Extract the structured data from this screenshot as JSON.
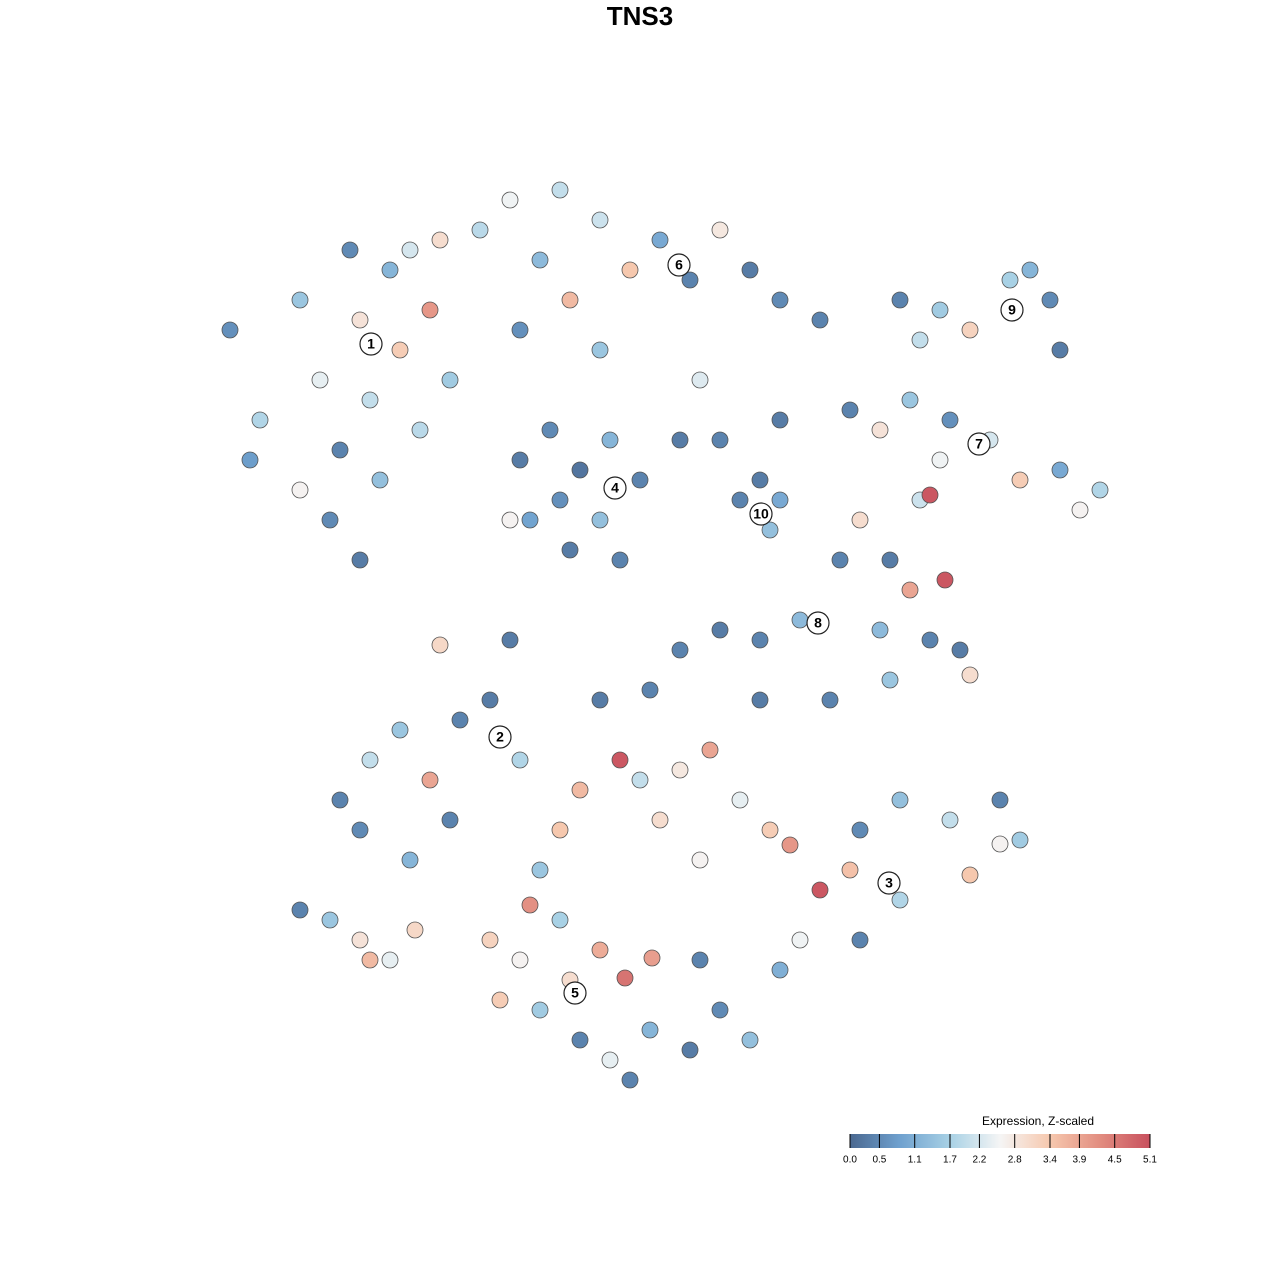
{
  "chart_data": {
    "type": "scatter",
    "title": "TNS3",
    "x": [
      23,
      26,
      30,
      32,
      34,
      36,
      37,
      39,
      40,
      42,
      43,
      45,
      33,
      36,
      30,
      25,
      41,
      35,
      44,
      38,
      48,
      51,
      54,
      57,
      60,
      63,
      66,
      69,
      72,
      75,
      78,
      82,
      56,
      52,
      60,
      70,
      90,
      94,
      97,
      101,
      105,
      106,
      92,
      103,
      85,
      88,
      91,
      95,
      99,
      102,
      106,
      110,
      94,
      108,
      52,
      55,
      58,
      61,
      64,
      53,
      57,
      60,
      62,
      56,
      51,
      68,
      72,
      78,
      74,
      77,
      76,
      78,
      84,
      86,
      89,
      92,
      93,
      94.5,
      91,
      88,
      93,
      96,
      89,
      97,
      80,
      76,
      72,
      68,
      44,
      51,
      34,
      37,
      40,
      43,
      46,
      49,
      36,
      41,
      45,
      52,
      30,
      33,
      36,
      39,
      41.5,
      37,
      60,
      65,
      62,
      58,
      64,
      68,
      71,
      74,
      77,
      79,
      82,
      85,
      86,
      90,
      95,
      100,
      102,
      100,
      97,
      90,
      86,
      80,
      78,
      70,
      66,
      56,
      54,
      76,
      83,
      49,
      53,
      52,
      56,
      60,
      62.5,
      65.2,
      50,
      54,
      58,
      61,
      65,
      69,
      72,
      75,
      57,
      63,
      70
    ],
    "y": [
      95,
      86,
      98,
      90,
      83,
      96,
      88,
      101,
      93,
      85,
      97,
      90,
      76,
      72,
      79,
      82,
      103,
      103,
      104,
      80,
      105,
      108,
      102,
      98,
      106,
      101,
      104,
      100,
      105,
      101,
      98,
      96,
      109,
      95,
      93,
      90,
      98,
      97,
      95,
      100,
      98,
      93,
      94,
      101,
      87,
      85,
      88,
      86,
      84,
      80,
      81,
      79,
      82,
      77,
      82,
      85,
      81,
      84,
      80,
      76,
      73,
      76,
      72,
      78,
      76,
      84,
      84,
      86,
      78,
      75,
      80,
      78,
      72,
      76,
      72,
      78,
      78.5,
      70,
      69,
      65,
      64,
      63,
      60,
      60.5,
      66,
      64,
      65,
      63,
      63.5,
      64,
      48,
      52,
      55,
      50,
      56,
      58,
      45,
      42,
      46,
      52,
      37,
      36,
      34,
      32,
      35,
      32,
      58,
      59,
      52,
      49,
      50,
      51,
      53,
      48,
      45,
      43.5,
      39,
      41,
      45,
      48,
      46,
      48,
      44,
      43.6,
      40.5,
      38,
      34,
      34,
      31,
      42,
      46,
      45,
      41,
      58,
      58,
      34,
      37.5,
      32,
      36,
      33,
      30.2,
      32.2,
      28,
      27,
      24,
      22,
      25,
      23,
      27,
      24,
      30,
      20,
      32
    ],
    "values": [
      0.6,
      1.8,
      1.5,
      2.4,
      0.4,
      2.9,
      2.0,
      1.2,
      3.3,
      1.9,
      4.1,
      1.6,
      0.5,
      0.3,
      2.6,
      0.8,
      2.2,
      0.5,
      3.0,
      1.4,
      1.9,
      2.5,
      1.3,
      3.6,
      2.1,
      3.4,
      1.0,
      0.4,
      2.8,
      0.3,
      0.5,
      0.4,
      2.0,
      0.6,
      1.5,
      2.3,
      0.4,
      1.6,
      3.2,
      1.7,
      0.5,
      0.3,
      2.0,
      1.2,
      0.4,
      2.9,
      1.5,
      0.6,
      2.2,
      3.3,
      1.0,
      1.8,
      2.5,
      2.6,
      0.3,
      0.5,
      0.2,
      1.2,
      0.4,
      0.9,
      0.3,
      1.4,
      0.4,
      0.6,
      2.6,
      0.3,
      0.4,
      0.3,
      0.4,
      1.4,
      0.3,
      1.0,
      0.4,
      3.0,
      0.3,
      2.1,
      5.0,
      5.0,
      3.9,
      1.3,
      0.4,
      0.3,
      1.5,
      3.0,
      1.3,
      0.4,
      0.3,
      0.4,
      3.1,
      0.3,
      0.4,
      2.0,
      1.5,
      3.9,
      0.4,
      0.3,
      0.5,
      1.2,
      0.4,
      1.8,
      0.4,
      1.5,
      2.9,
      2.4,
      3.1,
      3.6,
      0.3,
      0.4,
      5.0,
      3.6,
      2.0,
      2.8,
      3.9,
      2.4,
      3.3,
      4.1,
      5.0,
      3.5,
      0.5,
      1.4,
      2.0,
      0.4,
      1.6,
      2.6,
      3.4,
      1.8,
      0.4,
      2.5,
      1.1,
      2.6,
      3.0,
      3.4,
      1.5,
      0.3,
      0.4,
      3.2,
      4.2,
      2.6,
      1.7,
      3.8,
      4.6,
      4.0,
      3.3,
      1.6,
      0.4,
      2.4,
      1.2,
      0.3,
      0.5,
      1.4,
      3.0,
      0.4,
      0.4
    ],
    "xlim": [
      0,
      128
    ],
    "ylim": [
      0,
      128
    ],
    "colorscale": [
      "#4a6890",
      "#6fa1cf",
      "#a8d1e5",
      "#f5f5f5",
      "#f6c8ae",
      "#e28d80",
      "#c8505e"
    ],
    "colorbar": {
      "title": "Expression, Z-scaled",
      "lim": [
        0,
        5.1
      ],
      "ticks": [
        {
          "value": 0,
          "label": "0.0"
        },
        0.5,
        1.1,
        1.7,
        2.2,
        2.8,
        3.4,
        3.9,
        4.5,
        5.1
      ]
    },
    "clusters": [
      {
        "label": "1",
        "x": 37.1,
        "y": 93.6
      },
      {
        "label": "2",
        "x": 50,
        "y": 54.3
      },
      {
        "label": "3",
        "x": 88.9,
        "y": 39.7
      },
      {
        "label": "4",
        "x": 61.5,
        "y": 79.2
      },
      {
        "label": "5",
        "x": 57.5,
        "y": 28.7
      },
      {
        "label": "6",
        "x": 67.9,
        "y": 101.5
      },
      {
        "label": "7",
        "x": 97.9,
        "y": 83.6
      },
      {
        "label": "8",
        "x": 81.8,
        "y": 65.7
      },
      {
        "label": "9",
        "x": 101.2,
        "y": 97
      },
      {
        "label": "10",
        "x": 76.1,
        "y": 76.6
      }
    ]
  }
}
